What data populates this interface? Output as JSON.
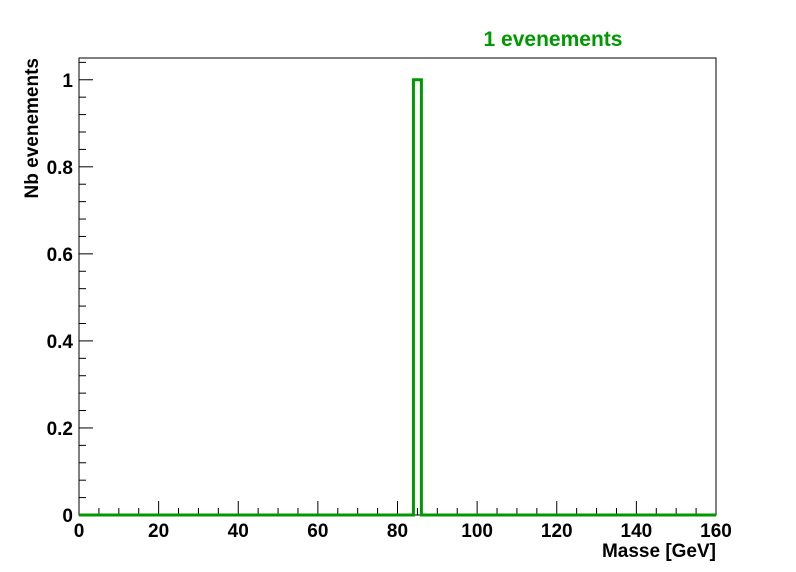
{
  "chart_data": {
    "type": "bar",
    "title": "1 evenements",
    "xlabel": "Masse [GeV]",
    "ylabel": "Nb evenements",
    "xlim": [
      0,
      160
    ],
    "ylim": [
      0,
      1.05
    ],
    "bin_width": 2,
    "x_ticks": [
      "0",
      "20",
      "40",
      "60",
      "80",
      "100",
      "120",
      "140",
      "160"
    ],
    "y_ticks": [
      "0",
      "0.2",
      "0.4",
      "0.6",
      "0.8",
      "1"
    ],
    "series": [
      {
        "bins": [
          {
            "x_low": 84,
            "x_high": 86,
            "value": 1
          }
        ],
        "color": "#009900"
      }
    ],
    "grid": false,
    "legend": "none"
  }
}
